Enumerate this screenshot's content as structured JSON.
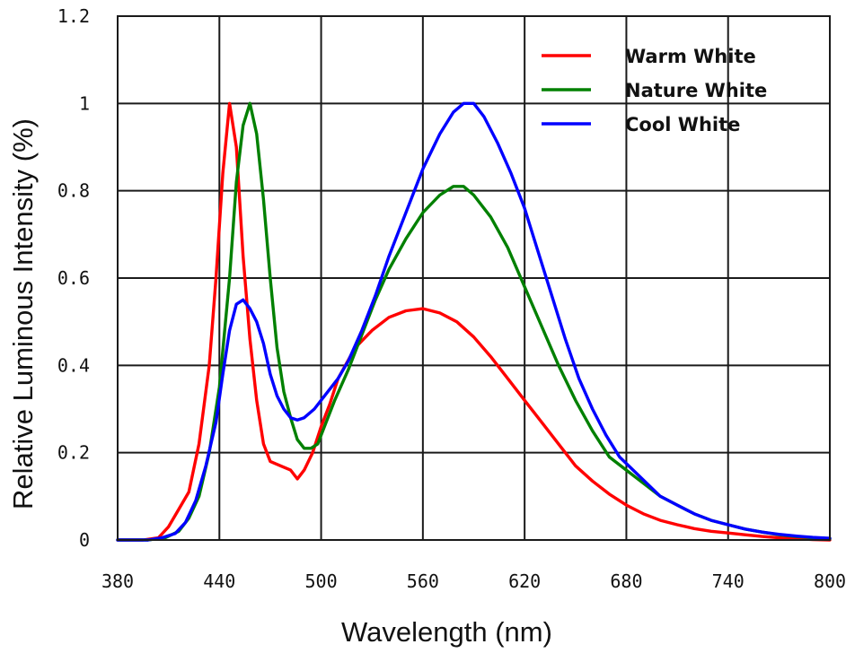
{
  "chart_data": {
    "type": "line",
    "xlabel": "Wavelength (nm)",
    "ylabel": "Relative Luminous Intensity (%)",
    "xlim": [
      380,
      800
    ],
    "ylim": [
      0,
      1.2
    ],
    "xticks": [
      380,
      440,
      500,
      560,
      620,
      680,
      740,
      800
    ],
    "xtick_labels": [
      "380",
      "440",
      "500",
      "560",
      "620",
      "680",
      "740",
      "800"
    ],
    "yticks": [
      0,
      0.2,
      0.4,
      0.6,
      0.8,
      1,
      1.2
    ],
    "ytick_labels": [
      "0",
      "0.2",
      "0.4",
      "0.6",
      "0.8",
      "1",
      "1.2"
    ],
    "grid": true,
    "legend_position": "top-right",
    "series": [
      {
        "name": "Warm White",
        "color": "#ff0000",
        "points": [
          [
            380,
            0
          ],
          [
            395,
            0
          ],
          [
            404,
            0.005
          ],
          [
            410,
            0.03
          ],
          [
            416,
            0.07
          ],
          [
            422,
            0.11
          ],
          [
            428,
            0.22
          ],
          [
            434,
            0.4
          ],
          [
            438,
            0.6
          ],
          [
            442,
            0.84
          ],
          [
            446,
            1.0
          ],
          [
            450,
            0.9
          ],
          [
            454,
            0.65
          ],
          [
            458,
            0.46
          ],
          [
            462,
            0.32
          ],
          [
            466,
            0.22
          ],
          [
            470,
            0.18
          ],
          [
            476,
            0.17
          ],
          [
            482,
            0.16
          ],
          [
            486,
            0.14
          ],
          [
            490,
            0.16
          ],
          [
            495,
            0.2
          ],
          [
            500,
            0.26
          ],
          [
            505,
            0.31
          ],
          [
            510,
            0.37
          ],
          [
            520,
            0.44
          ],
          [
            530,
            0.48
          ],
          [
            540,
            0.51
          ],
          [
            550,
            0.525
          ],
          [
            560,
            0.53
          ],
          [
            570,
            0.52
          ],
          [
            580,
            0.5
          ],
          [
            590,
            0.465
          ],
          [
            600,
            0.42
          ],
          [
            610,
            0.37
          ],
          [
            620,
            0.32
          ],
          [
            630,
            0.27
          ],
          [
            640,
            0.22
          ],
          [
            650,
            0.17
          ],
          [
            660,
            0.135
          ],
          [
            670,
            0.105
          ],
          [
            680,
            0.08
          ],
          [
            690,
            0.06
          ],
          [
            700,
            0.045
          ],
          [
            710,
            0.035
          ],
          [
            720,
            0.026
          ],
          [
            730,
            0.02
          ],
          [
            740,
            0.016
          ],
          [
            750,
            0.012
          ],
          [
            760,
            0.008
          ],
          [
            770,
            0.005
          ],
          [
            780,
            0.003
          ],
          [
            790,
            0.001
          ],
          [
            800,
            0
          ]
        ]
      },
      {
        "name": "Nature White",
        "color": "#008000",
        "points": [
          [
            380,
            0
          ],
          [
            398,
            0
          ],
          [
            408,
            0.005
          ],
          [
            416,
            0.02
          ],
          [
            422,
            0.05
          ],
          [
            428,
            0.1
          ],
          [
            434,
            0.2
          ],
          [
            440,
            0.35
          ],
          [
            446,
            0.6
          ],
          [
            450,
            0.82
          ],
          [
            454,
            0.95
          ],
          [
            458,
            1.0
          ],
          [
            462,
            0.93
          ],
          [
            466,
            0.78
          ],
          [
            470,
            0.6
          ],
          [
            474,
            0.44
          ],
          [
            478,
            0.34
          ],
          [
            482,
            0.28
          ],
          [
            486,
            0.23
          ],
          [
            490,
            0.21
          ],
          [
            494,
            0.21
          ],
          [
            498,
            0.22
          ],
          [
            502,
            0.26
          ],
          [
            508,
            0.32
          ],
          [
            516,
            0.39
          ],
          [
            524,
            0.47
          ],
          [
            532,
            0.55
          ],
          [
            540,
            0.62
          ],
          [
            550,
            0.69
          ],
          [
            560,
            0.75
          ],
          [
            570,
            0.79
          ],
          [
            578,
            0.81
          ],
          [
            584,
            0.81
          ],
          [
            590,
            0.79
          ],
          [
            600,
            0.74
          ],
          [
            610,
            0.67
          ],
          [
            620,
            0.58
          ],
          [
            630,
            0.49
          ],
          [
            640,
            0.4
          ],
          [
            650,
            0.32
          ],
          [
            660,
            0.25
          ],
          [
            670,
            0.19
          ],
          [
            680,
            0.16
          ],
          [
            690,
            0.13
          ],
          [
            700,
            0.1
          ],
          [
            710,
            0.08
          ],
          [
            720,
            0.06
          ],
          [
            730,
            0.045
          ],
          [
            740,
            0.035
          ],
          [
            750,
            0.025
          ],
          [
            760,
            0.018
          ],
          [
            770,
            0.012
          ],
          [
            780,
            0.008
          ],
          [
            790,
            0.005
          ],
          [
            800,
            0.003
          ]
        ]
      },
      {
        "name": "Cool White",
        "color": "#0000ff",
        "points": [
          [
            380,
            0
          ],
          [
            398,
            0
          ],
          [
            406,
            0.005
          ],
          [
            414,
            0.015
          ],
          [
            420,
            0.04
          ],
          [
            426,
            0.09
          ],
          [
            432,
            0.17
          ],
          [
            438,
            0.27
          ],
          [
            442,
            0.38
          ],
          [
            446,
            0.48
          ],
          [
            450,
            0.54
          ],
          [
            454,
            0.55
          ],
          [
            458,
            0.53
          ],
          [
            462,
            0.5
          ],
          [
            466,
            0.45
          ],
          [
            470,
            0.38
          ],
          [
            474,
            0.33
          ],
          [
            478,
            0.3
          ],
          [
            482,
            0.28
          ],
          [
            486,
            0.275
          ],
          [
            490,
            0.28
          ],
          [
            496,
            0.3
          ],
          [
            502,
            0.33
          ],
          [
            510,
            0.37
          ],
          [
            516,
            0.41
          ],
          [
            524,
            0.48
          ],
          [
            532,
            0.56
          ],
          [
            540,
            0.65
          ],
          [
            550,
            0.75
          ],
          [
            560,
            0.85
          ],
          [
            570,
            0.93
          ],
          [
            578,
            0.98
          ],
          [
            584,
            1.0
          ],
          [
            590,
            1.0
          ],
          [
            596,
            0.97
          ],
          [
            604,
            0.91
          ],
          [
            612,
            0.84
          ],
          [
            620,
            0.76
          ],
          [
            628,
            0.66
          ],
          [
            636,
            0.56
          ],
          [
            644,
            0.46
          ],
          [
            652,
            0.37
          ],
          [
            660,
            0.3
          ],
          [
            668,
            0.24
          ],
          [
            676,
            0.19
          ],
          [
            684,
            0.16
          ],
          [
            692,
            0.13
          ],
          [
            700,
            0.1
          ],
          [
            710,
            0.08
          ],
          [
            720,
            0.06
          ],
          [
            730,
            0.045
          ],
          [
            740,
            0.035
          ],
          [
            750,
            0.025
          ],
          [
            760,
            0.018
          ],
          [
            770,
            0.013
          ],
          [
            780,
            0.009
          ],
          [
            790,
            0.006
          ],
          [
            800,
            0.004
          ]
        ]
      }
    ]
  }
}
